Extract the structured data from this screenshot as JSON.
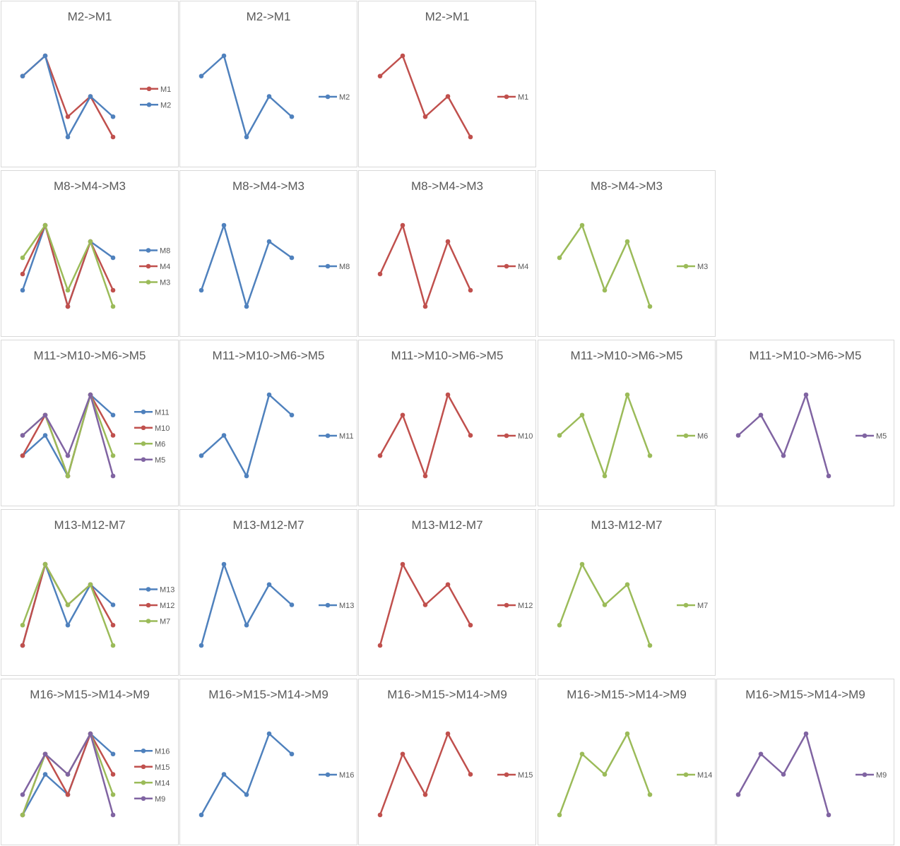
{
  "colors": {
    "blue": "#4f81bd",
    "red": "#c0504d",
    "green": "#9bbb59",
    "purple": "#8064a2"
  },
  "chart_data": [
    {
      "type": "line",
      "title": "M2->M1",
      "x": [
        1,
        2,
        3,
        4,
        5
      ],
      "series": [
        {
          "name": "M1",
          "color": "red",
          "values": [
            3,
            4,
            1,
            2,
            0
          ]
        },
        {
          "name": "M2",
          "color": "blue",
          "values": [
            3,
            4,
            0,
            2,
            1
          ]
        }
      ]
    },
    {
      "type": "line",
      "title": "M2->M1",
      "x": [
        1,
        2,
        3,
        4,
        5
      ],
      "series": [
        {
          "name": "M2",
          "color": "blue",
          "values": [
            3,
            4,
            0,
            2,
            1
          ]
        }
      ]
    },
    {
      "type": "line",
      "title": "M2->M1",
      "x": [
        1,
        2,
        3,
        4,
        5
      ],
      "series": [
        {
          "name": "M1",
          "color": "red",
          "values": [
            3,
            4,
            1,
            2,
            0
          ]
        }
      ]
    },
    {
      "type": "line",
      "title": "M8->M4->M3",
      "x": [
        1,
        2,
        3,
        4,
        5
      ],
      "series": [
        {
          "name": "M8",
          "color": "blue",
          "values": [
            1,
            5,
            0,
            4,
            3
          ]
        },
        {
          "name": "M4",
          "color": "red",
          "values": [
            2,
            5,
            0,
            4,
            1
          ]
        },
        {
          "name": "M3",
          "color": "green",
          "values": [
            3,
            5,
            1,
            4,
            0
          ]
        }
      ]
    },
    {
      "type": "line",
      "title": "M8->M4->M3",
      "x": [
        1,
        2,
        3,
        4,
        5
      ],
      "series": [
        {
          "name": "M8",
          "color": "blue",
          "values": [
            1,
            5,
            0,
            4,
            3
          ]
        }
      ]
    },
    {
      "type": "line",
      "title": "M8->M4->M3",
      "x": [
        1,
        2,
        3,
        4,
        5
      ],
      "series": [
        {
          "name": "M4",
          "color": "red",
          "values": [
            2,
            5,
            0,
            4,
            1
          ]
        }
      ]
    },
    {
      "type": "line",
      "title": "M8->M4->M3",
      "x": [
        1,
        2,
        3,
        4,
        5
      ],
      "series": [
        {
          "name": "M3",
          "color": "green",
          "values": [
            3,
            5,
            1,
            4,
            0
          ]
        }
      ]
    },
    {
      "type": "line",
      "title": "M11->M10->M6->M5",
      "x": [
        1,
        2,
        3,
        4,
        5
      ],
      "series": [
        {
          "name": "M11",
          "color": "blue",
          "values": [
            1,
            2,
            0,
            4,
            3
          ]
        },
        {
          "name": "M10",
          "color": "red",
          "values": [
            1,
            3,
            0,
            4,
            2
          ]
        },
        {
          "name": "M6",
          "color": "green",
          "values": [
            2,
            3,
            0,
            4,
            1
          ]
        },
        {
          "name": "M5",
          "color": "purple",
          "values": [
            2,
            3,
            1,
            4,
            0
          ]
        }
      ]
    },
    {
      "type": "line",
      "title": "M11->M10->M6->M5",
      "x": [
        1,
        2,
        3,
        4,
        5
      ],
      "series": [
        {
          "name": "M11",
          "color": "blue",
          "values": [
            1,
            2,
            0,
            4,
            3
          ]
        }
      ]
    },
    {
      "type": "line",
      "title": "M11->M10->M6->M5",
      "x": [
        1,
        2,
        3,
        4,
        5
      ],
      "series": [
        {
          "name": "M10",
          "color": "red",
          "values": [
            1,
            3,
            0,
            4,
            2
          ]
        }
      ]
    },
    {
      "type": "line",
      "title": "M11->M10->M6->M5",
      "x": [
        1,
        2,
        3,
        4,
        5
      ],
      "series": [
        {
          "name": "M6",
          "color": "green",
          "values": [
            2,
            3,
            0,
            4,
            1
          ]
        }
      ]
    },
    {
      "type": "line",
      "title": "M11->M10->M6->M5",
      "x": [
        1,
        2,
        3,
        4,
        5
      ],
      "series": [
        {
          "name": "M5",
          "color": "purple",
          "values": [
            2,
            3,
            1,
            4,
            0
          ]
        }
      ]
    },
    {
      "type": "line",
      "title": "M13-M12-M7",
      "x": [
        1,
        2,
        3,
        4,
        5
      ],
      "series": [
        {
          "name": "M13",
          "color": "blue",
          "values": [
            0,
            4,
            1,
            3,
            2
          ]
        },
        {
          "name": "M12",
          "color": "red",
          "values": [
            0,
            4,
            2,
            3,
            1
          ]
        },
        {
          "name": "M7",
          "color": "green",
          "values": [
            1,
            4,
            2,
            3,
            0
          ]
        }
      ]
    },
    {
      "type": "line",
      "title": "M13-M12-M7",
      "x": [
        1,
        2,
        3,
        4,
        5
      ],
      "series": [
        {
          "name": "M13",
          "color": "blue",
          "values": [
            0,
            4,
            1,
            3,
            2
          ]
        }
      ]
    },
    {
      "type": "line",
      "title": "M13-M12-M7",
      "x": [
        1,
        2,
        3,
        4,
        5
      ],
      "series": [
        {
          "name": "M12",
          "color": "red",
          "values": [
            0,
            4,
            2,
            3,
            1
          ]
        }
      ]
    },
    {
      "type": "line",
      "title": "M13-M12-M7",
      "x": [
        1,
        2,
        3,
        4,
        5
      ],
      "series": [
        {
          "name": "M7",
          "color": "green",
          "values": [
            1,
            4,
            2,
            3,
            0
          ]
        }
      ]
    },
    {
      "type": "line",
      "title": "M16->M15->M14->M9",
      "x": [
        1,
        2,
        3,
        4,
        5
      ],
      "series": [
        {
          "name": "M16",
          "color": "blue",
          "values": [
            0,
            2,
            1,
            4,
            3
          ]
        },
        {
          "name": "M15",
          "color": "red",
          "values": [
            0,
            3,
            1,
            4,
            2
          ]
        },
        {
          "name": "M14",
          "color": "green",
          "values": [
            0,
            3,
            2,
            4,
            1
          ]
        },
        {
          "name": "M9",
          "color": "purple",
          "values": [
            1,
            3,
            2,
            4,
            0
          ]
        }
      ]
    },
    {
      "type": "line",
      "title": "M16->M15->M14->M9",
      "x": [
        1,
        2,
        3,
        4,
        5
      ],
      "series": [
        {
          "name": "M16",
          "color": "blue",
          "values": [
            0,
            2,
            1,
            4,
            3
          ]
        }
      ]
    },
    {
      "type": "line",
      "title": "M16->M15->M14->M9",
      "x": [
        1,
        2,
        3,
        4,
        5
      ],
      "series": [
        {
          "name": "M15",
          "color": "red",
          "values": [
            0,
            3,
            1,
            4,
            2
          ]
        }
      ]
    },
    {
      "type": "line",
      "title": "M16->M15->M14->M9",
      "x": [
        1,
        2,
        3,
        4,
        5
      ],
      "series": [
        {
          "name": "M14",
          "color": "green",
          "values": [
            0,
            3,
            2,
            4,
            1
          ]
        }
      ]
    },
    {
      "type": "line",
      "title": "M16->M15->M14->M9",
      "x": [
        1,
        2,
        3,
        4,
        5
      ],
      "series": [
        {
          "name": "M9",
          "color": "purple",
          "values": [
            1,
            3,
            2,
            4,
            0
          ]
        }
      ]
    }
  ]
}
